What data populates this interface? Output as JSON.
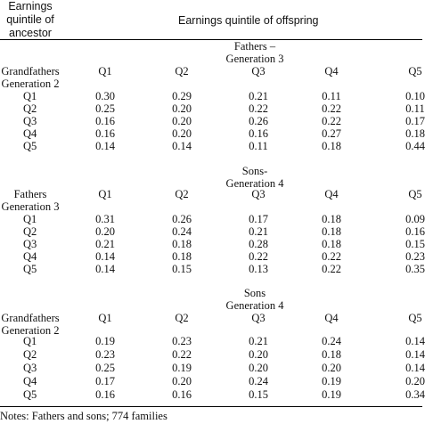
{
  "header": {
    "ancestor_label_lines": [
      "Earnings",
      "quintile of",
      "ancestor"
    ],
    "offspring_label": "Earnings quintile of offspring"
  },
  "panels": [
    {
      "title_lines": [
        "Fathers –",
        "Generation 3"
      ],
      "row_header_lines": [
        "Grandfathers",
        "Generation 2"
      ],
      "columns": [
        "Q1",
        "Q2",
        "Q3",
        "Q4",
        "Q5"
      ],
      "rows": [
        {
          "label": "Q1",
          "values": [
            "0.30",
            "0.29",
            "0.21",
            "0.11",
            "0.10"
          ]
        },
        {
          "label": "Q2",
          "values": [
            "0.25",
            "0.20",
            "0.22",
            "0.22",
            "0.11"
          ]
        },
        {
          "label": "Q3",
          "values": [
            "0.16",
            "0.20",
            "0.26",
            "0.22",
            "0.17"
          ]
        },
        {
          "label": "Q4",
          "values": [
            "0.16",
            "0.20",
            "0.16",
            "0.27",
            "0.18"
          ]
        },
        {
          "label": "Q5",
          "values": [
            "0.14",
            "0.14",
            "0.11",
            "0.18",
            "0.44"
          ]
        }
      ]
    },
    {
      "title_lines": [
        "Sons-",
        "Generation 4"
      ],
      "row_header_lines": [
        "Fathers",
        "Generation 3"
      ],
      "columns": [
        "Q1",
        "Q2",
        "Q3",
        "Q4",
        "Q5"
      ],
      "rows": [
        {
          "label": "Q1",
          "values": [
            "0.31",
            "0.26",
            "0.17",
            "0.18",
            "0.09"
          ]
        },
        {
          "label": "Q2",
          "values": [
            "0.20",
            "0.24",
            "0.21",
            "0.18",
            "0.16"
          ]
        },
        {
          "label": "Q3",
          "values": [
            "0.21",
            "0.18",
            "0.28",
            "0.18",
            "0.15"
          ]
        },
        {
          "label": "Q4",
          "values": [
            "0.14",
            "0.18",
            "0.22",
            "0.22",
            "0.23"
          ]
        },
        {
          "label": "Q5",
          "values": [
            "0.14",
            "0.15",
            "0.13",
            "0.22",
            "0.35"
          ]
        }
      ]
    },
    {
      "title_lines": [
        "Sons",
        "Generation 4"
      ],
      "row_header_lines": [
        "Grandfathers",
        "Generation 2"
      ],
      "columns": [
        "Q1",
        "Q2",
        "Q3",
        "Q4",
        "Q5"
      ],
      "rows": [
        {
          "label": "Q1",
          "values": [
            "0.19",
            "0.23",
            "0.21",
            "0.24",
            "0.14"
          ]
        },
        {
          "label": "Q2",
          "values": [
            "0.23",
            "0.22",
            "0.20",
            "0.18",
            "0.14"
          ]
        },
        {
          "label": "Q3",
          "values": [
            "0.25",
            "0.19",
            "0.20",
            "0.20",
            "0.14"
          ]
        },
        {
          "label": "Q4",
          "values": [
            "0.17",
            "0.20",
            "0.24",
            "0.19",
            "0.20"
          ]
        },
        {
          "label": "Q5",
          "values": [
            "0.16",
            "0.16",
            "0.15",
            "0.19",
            "0.34"
          ]
        }
      ]
    }
  ],
  "notes": "Notes:  Fathers and sons; 774 families"
}
